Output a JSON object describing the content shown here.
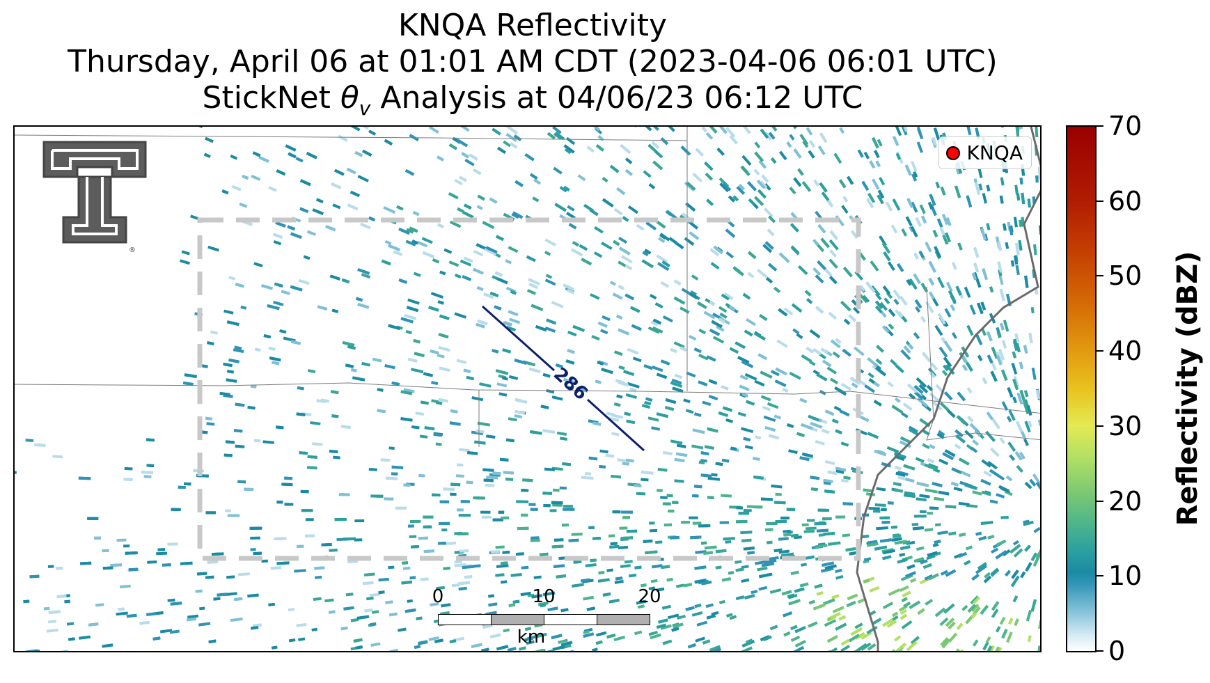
{
  "title": {
    "line1": "KNQA Reflectivity",
    "line2": "Thursday, April 06 at 01:01 AM CDT (2023-04-06 06:01 UTC)",
    "line3_prefix": "StickNet ",
    "line3_symbol": "θ",
    "line3_subscript": "v",
    "line3_suffix": " Analysis at 04/06/23 06:12 UTC"
  },
  "legend": {
    "label": "KNQA",
    "marker_color": "#ff0000"
  },
  "contour": {
    "label": "286",
    "color": "#0d1f6b"
  },
  "scalebar": {
    "ticks": [
      "0",
      "10",
      "20"
    ],
    "unit": "km"
  },
  "colorbar": {
    "title": "Reflectivity (dBZ)",
    "min": 0,
    "max": 70,
    "ticks": [
      "0",
      "10",
      "20",
      "30",
      "40",
      "50",
      "60",
      "70"
    ]
  },
  "logo": {
    "name": "texas-tech-double-t"
  },
  "colors": {
    "analysis_box": "#c8c8c8",
    "boundary": "#7a7a7a",
    "low_dbz": "#2f93b5",
    "mid_dbz": "#4bb48c",
    "high_dbz": "#c9e85a"
  }
}
